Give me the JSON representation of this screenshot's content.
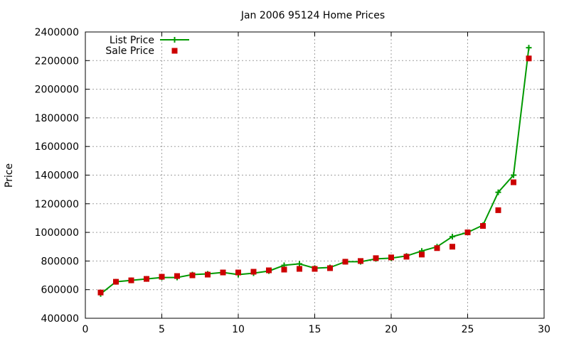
{
  "chart_data": {
    "type": "line",
    "title": "Jan 2006 95124 Home Prices",
    "xlabel": "",
    "ylabel": "Price",
    "xlim": [
      0,
      30
    ],
    "ylim": [
      400000,
      2400000
    ],
    "xticks": [
      0,
      5,
      10,
      15,
      20,
      25,
      30
    ],
    "yticks": [
      400000,
      600000,
      800000,
      1000000,
      1200000,
      1400000,
      1600000,
      1800000,
      2000000,
      2200000,
      2400000
    ],
    "grid": true,
    "legend_position": "top-left",
    "series": [
      {
        "name": "List Price",
        "style": "line-with-plus-markers",
        "color": "#009900",
        "x": [
          1,
          2,
          3,
          4,
          5,
          6,
          7,
          8,
          9,
          10,
          11,
          12,
          13,
          14,
          15,
          16,
          17,
          18,
          19,
          20,
          21,
          22,
          23,
          24,
          25,
          26,
          27,
          28,
          29
        ],
        "y": [
          570000,
          655000,
          665000,
          675000,
          685000,
          685000,
          705000,
          710000,
          720000,
          705000,
          715000,
          730000,
          770000,
          780000,
          750000,
          755000,
          795000,
          795000,
          815000,
          820000,
          835000,
          870000,
          900000,
          970000,
          1000000,
          1050000,
          1280000,
          1400000,
          2290000
        ]
      },
      {
        "name": "Sale Price",
        "style": "square-markers",
        "color": "#cc0000",
        "x": [
          1,
          2,
          3,
          4,
          5,
          6,
          7,
          8,
          9,
          10,
          11,
          12,
          13,
          14,
          15,
          16,
          17,
          18,
          19,
          20,
          21,
          22,
          23,
          24,
          25,
          26,
          27,
          28,
          29
        ],
        "y": [
          580000,
          655000,
          665000,
          675000,
          690000,
          695000,
          700000,
          705000,
          720000,
          720000,
          725000,
          735000,
          740000,
          745000,
          745000,
          750000,
          795000,
          800000,
          820000,
          825000,
          830000,
          845000,
          890000,
          900000,
          1000000,
          1045000,
          1155000,
          1350000,
          2215000
        ]
      }
    ]
  }
}
